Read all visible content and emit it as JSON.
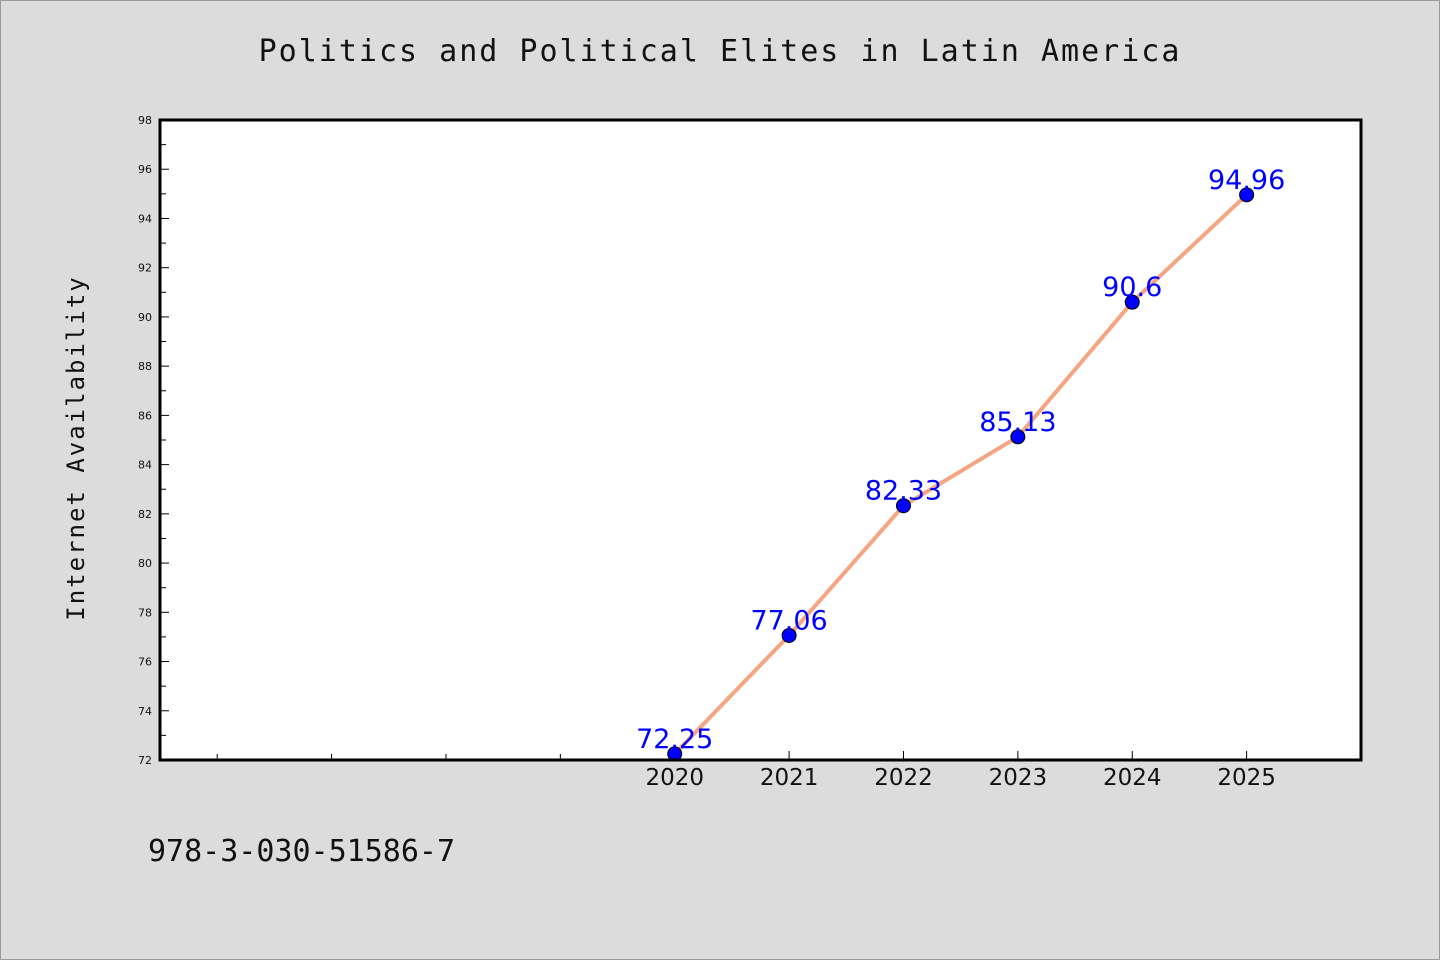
{
  "chart_data": {
    "type": "line",
    "title": "Politics and Political Elites in Latin America",
    "xlabel": "",
    "ylabel": "Internet Availability",
    "x": [
      2020,
      2021,
      2022,
      2023,
      2024,
      2025
    ],
    "xticks": [
      "2020",
      "2021",
      "2022",
      "2023",
      "2024",
      "2025"
    ],
    "xlim": [
      2015.5,
      2026
    ],
    "ylim": [
      72,
      98
    ],
    "yticks": [
      72,
      74,
      76,
      78,
      80,
      82,
      84,
      86,
      88,
      90,
      92,
      94,
      96,
      98
    ],
    "series": [
      {
        "values": [
          72.25,
          77.06,
          82.33,
          85.13,
          90.6,
          94.96
        ],
        "labels": [
          "72.25",
          "77.06",
          "82.33",
          "85.13",
          "90.6",
          "94.96"
        ],
        "line_color": "#f4a582",
        "marker_color": "#0000ff"
      }
    ],
    "grid": false,
    "legend": "none"
  },
  "footnote": "978-3-030-51586-7",
  "colors": {
    "background": "#dcdcdc",
    "plot_background": "#ffffff",
    "line": "#f4a582",
    "marker": "#0000ff",
    "data_label": "#0000ff"
  }
}
